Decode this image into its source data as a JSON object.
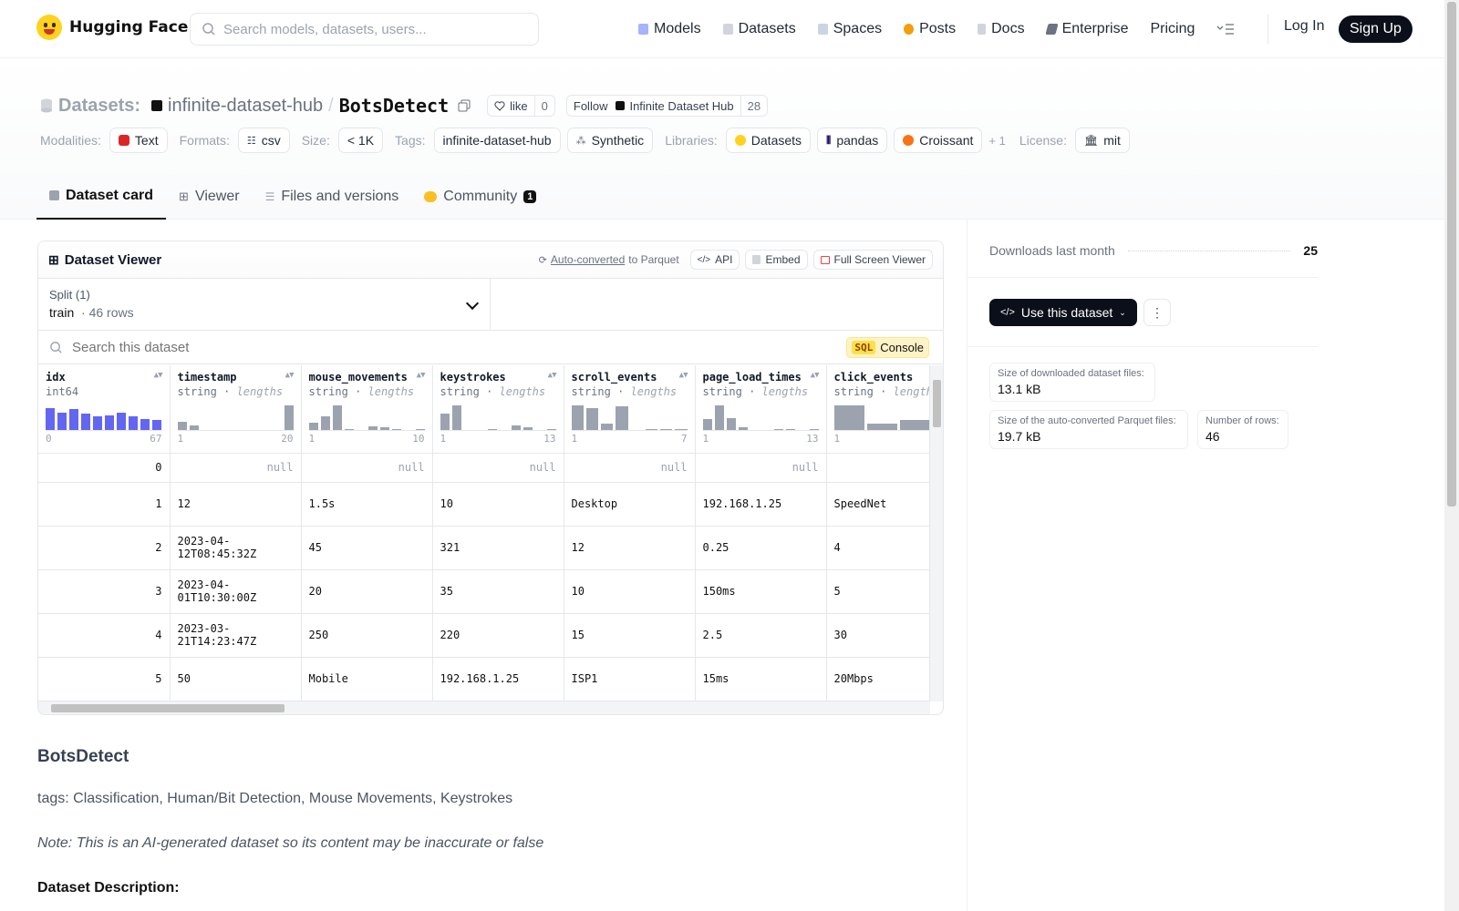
{
  "nav": {
    "brand": "Hugging Face",
    "search_placeholder": "Search models, datasets, users...",
    "links": [
      "Models",
      "Datasets",
      "Spaces",
      "Posts",
      "Docs",
      "Enterprise",
      "Pricing"
    ],
    "login": "Log In",
    "signup": "Sign Up"
  },
  "repo": {
    "prefix": "Datasets:",
    "org": "infinite-dataset-hub",
    "name": "BotsDetect",
    "like_label": "like",
    "like_count": "0",
    "follow_label": "Follow",
    "follow_org": "Infinite Dataset Hub",
    "follow_count": "28"
  },
  "tags": {
    "modalities_label": "Modalities:",
    "modality": "Text",
    "formats_label": "Formats:",
    "format": "csv",
    "size_label": "Size:",
    "size": "< 1K",
    "tags_label": "Tags:",
    "tag1": "infinite-dataset-hub",
    "tag2": "Synthetic",
    "libraries_label": "Libraries:",
    "lib1": "Datasets",
    "lib2": "pandas",
    "lib3": "Croissant",
    "more": "+ 1",
    "license_label": "License:",
    "license": "mit"
  },
  "tabs": [
    "Dataset card",
    "Viewer",
    "Files and versions",
    "Community"
  ],
  "community_badge": "1",
  "viewer": {
    "title": "Dataset Viewer",
    "auto_converted": "Auto-converted",
    "to_parquet": "to Parquet",
    "api": "API",
    "embed": "Embed",
    "fullscreen": "Full Screen Viewer",
    "split_label": "Split (1)",
    "split_name": "train",
    "split_rows": "46 rows",
    "search_placeholder": "Search this dataset",
    "sql": "SQL",
    "console": "Console"
  },
  "columns": [
    {
      "name": "idx",
      "type": "int64",
      "lengths": "",
      "min": "0",
      "max": "67",
      "hist": [
        0.9,
        0.7,
        0.85,
        0.65,
        0.55,
        0.6,
        0.7,
        0.55,
        0.45,
        0.4
      ],
      "color": "#6366f1"
    },
    {
      "name": "timestamp",
      "type": "string",
      "lengths": "lengths",
      "min": "1",
      "max": "20",
      "hist": [
        0.35,
        0.2,
        0,
        0,
        0,
        0,
        0,
        0,
        0,
        1.0
      ],
      "color": "#9ca3af"
    },
    {
      "name": "mouse_movements",
      "type": "string",
      "lengths": "lengths",
      "min": "1",
      "max": "10",
      "hist": [
        0.3,
        0.55,
        1.0,
        0.05,
        0,
        0.15,
        0.1,
        0.05,
        0,
        0.05
      ],
      "color": "#9ca3af"
    },
    {
      "name": "keystrokes",
      "type": "string",
      "lengths": "lengths",
      "min": "1",
      "max": "13",
      "hist": [
        0.65,
        1.0,
        0,
        0,
        0.05,
        0,
        0.2,
        0.1,
        0,
        0.05
      ],
      "color": "#9ca3af"
    },
    {
      "name": "scroll_events",
      "type": "string",
      "lengths": "lengths",
      "min": "1",
      "max": "7",
      "hist": [
        1.0,
        0.9,
        0.25,
        0.95,
        0,
        0.05,
        0.05,
        0.05
      ],
      "color": "#9ca3af"
    },
    {
      "name": "page_load_times",
      "type": "string",
      "lengths": "lengths",
      "min": "1",
      "max": "13",
      "hist": [
        0.45,
        1.0,
        0.5,
        0.1,
        0,
        0,
        0.05,
        0.05,
        0,
        0.05
      ],
      "color": "#9ca3af"
    },
    {
      "name": "click_events",
      "type": "string",
      "lengths": "lengths",
      "min": "1",
      "max": "",
      "hist": [
        1.0,
        0.25,
        0.4,
        0.2,
        0.05
      ],
      "color": "#9ca3af"
    }
  ],
  "rows": [
    [
      "0",
      null,
      null,
      null,
      null,
      null,
      ""
    ],
    [
      "1",
      "12",
      "1.5s",
      "10",
      "Desktop",
      "192.168.1.25",
      "SpeedNet"
    ],
    [
      "2",
      "2023-04-12T08:45:32Z",
      "45",
      "321",
      "12",
      "0.25",
      "4"
    ],
    [
      "3",
      "2023-04-01T10:30:00Z",
      "20",
      "35",
      "10",
      "150ms",
      "5"
    ],
    [
      "4",
      "2023-03-21T14:23:47Z",
      "250",
      "220",
      "15",
      "2.5",
      "30"
    ],
    [
      "5",
      "50",
      "Mobile",
      "192.168.1.25",
      "ISP1",
      "15ms",
      "20Mbps"
    ]
  ],
  "null_text": "null",
  "card": {
    "heading": "BotsDetect",
    "tags_line": "tags: Classification, Human/Bit Detection, Mouse Movements, Keystrokes",
    "note": "Note: This is an AI-generated dataset so its content may be inaccurate or false",
    "desc_heading": "Dataset Description:"
  },
  "sidebar": {
    "downloads_label": "Downloads last month",
    "downloads_value": "25",
    "use_button": "Use this dataset",
    "dl_size_label": "Size of downloaded dataset files:",
    "dl_size_value": "13.1 kB",
    "parquet_label": "Size of the auto-converted Parquet files:",
    "parquet_value": "19.7 kB",
    "rows_label": "Number of rows:",
    "rows_value": "46"
  },
  "colors": {
    "accent_dark": "#0b0f19",
    "hist_int": "#6366f1",
    "hist_str": "#9ca3af",
    "hf_yellow": "#ffd21e"
  }
}
